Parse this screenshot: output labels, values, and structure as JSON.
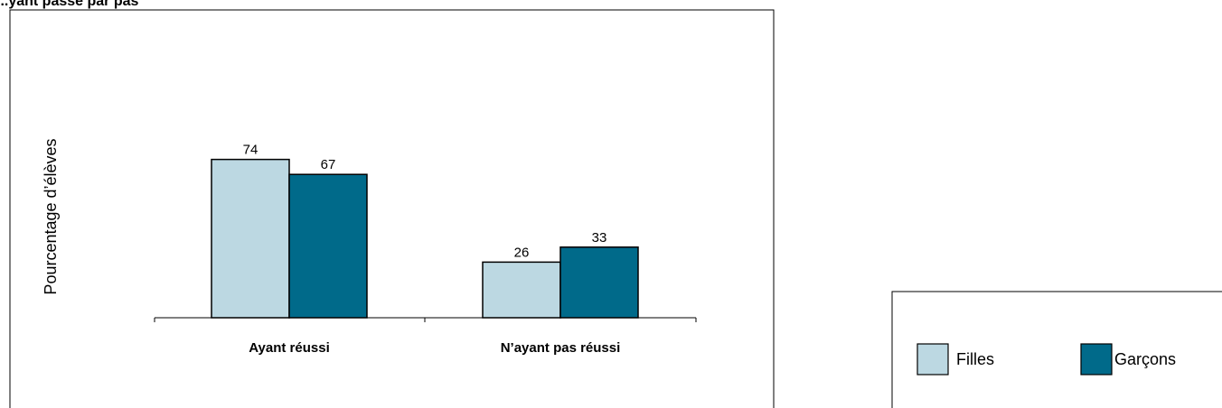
{
  "title": "...yant passé par pas",
  "chart_data": {
    "type": "bar",
    "ylabel": "Pourcentage d’élèves",
    "ylim": [
      0,
      100
    ],
    "categories": [
      "Ayant réussi",
      "N’ayant pas réussi"
    ],
    "series": [
      {
        "name": "Filles",
        "values": [
          74,
          26
        ],
        "color": "#bcd8e2"
      },
      {
        "name": "Garçons",
        "values": [
          67,
          33
        ],
        "color": "#006a8a"
      }
    ],
    "value_labels": [
      [
        "74",
        "26"
      ],
      [
        "67",
        "33"
      ]
    ],
    "legend_position": "bottom-right",
    "grid": false
  }
}
